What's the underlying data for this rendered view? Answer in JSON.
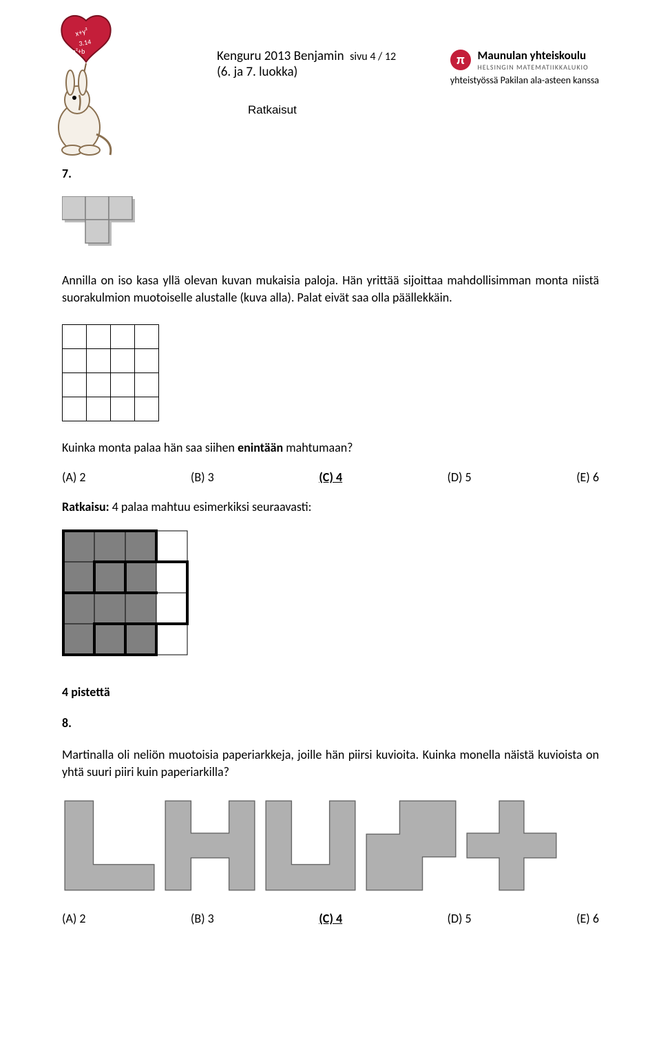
{
  "header": {
    "title_main": "Kenguru 2013 Benjamin",
    "title_page": "sivu 4 / 12",
    "title_sub": "(6. ja 7. luokka)",
    "subtitle": "Ratkaisut",
    "school_name": "Maunulan yhteiskoulu",
    "school_sub": "HELSINGIN MATEMATIIKKALUKIO",
    "cooperation": "yhteistyössä Pakilan ala-asteen kanssa",
    "pi_symbol": "π"
  },
  "q7": {
    "number": "7.",
    "text1": "Annilla on iso kasa yllä olevan kuvan mukaisia paloja. Hän yrittää sijoittaa mahdollisimman monta niistä suorakulmion muotoiselle alustalle (kuva alla). Palat eivät saa olla päällekkäin.",
    "text2_pre": "Kuinka monta palaa hän saa siihen ",
    "text2_bold": "enintään",
    "text2_post": " mahtumaan?",
    "options": {
      "a": "(A) 2",
      "b": "(B) 3",
      "c": "(C) 4",
      "d": "(D) 5",
      "e": "(E) 6"
    },
    "solution_label": "Ratkaisu:",
    "solution_text": " 4 palaa mahtuu esimerkiksi seuraavasti:",
    "tetromino": {
      "cell_size": 34,
      "fill": "#cccccc",
      "stroke": "#808080",
      "shadow": "#bbbbbb"
    },
    "grid": {
      "cols": 4,
      "rows": 4,
      "cell_size": 35,
      "stroke": "#000000",
      "fill": "#ffffff"
    },
    "solved": {
      "cols": 4,
      "rows": 4,
      "cell_size": 45,
      "fill_piece": "#808080",
      "fill_empty": "#ffffff",
      "thin_stroke": "#000000",
      "thick_stroke": "#000000",
      "filled_cells": [
        [
          0,
          0
        ],
        [
          0,
          1
        ],
        [
          0,
          2
        ],
        [
          1,
          0
        ],
        [
          1,
          1
        ],
        [
          1,
          2
        ],
        [
          2,
          0
        ],
        [
          2,
          1
        ],
        [
          2,
          2
        ],
        [
          3,
          0
        ],
        [
          3,
          1
        ],
        [
          3,
          2
        ]
      ],
      "thick_segments": [
        [
          0,
          0,
          3,
          0
        ],
        [
          0,
          0,
          0,
          2
        ],
        [
          3,
          0,
          3,
          1
        ],
        [
          0,
          2,
          3,
          2
        ],
        [
          3,
          1,
          4,
          1
        ],
        [
          4,
          1,
          4,
          3
        ],
        [
          0,
          2,
          0,
          4
        ],
        [
          0,
          4,
          3,
          4
        ],
        [
          3,
          3,
          4,
          3
        ],
        [
          3,
          3,
          3,
          4
        ],
        [
          1,
          1,
          1,
          2
        ],
        [
          2,
          1,
          2,
          2
        ],
        [
          1,
          3,
          1,
          4
        ],
        [
          2,
          3,
          2,
          4
        ],
        [
          1,
          1,
          3,
          1
        ],
        [
          1,
          3,
          3,
          3
        ]
      ]
    }
  },
  "section_title": "4 pistettä",
  "q8": {
    "number": "8.",
    "text": "Martinalla oli neliön muotoisia paperiarkkeja, joille hän piirsi kuvioita. Kuinka monella näistä kuvioista on yhtä suuri piiri kuin paperiarkilla?",
    "options": {
      "a": "(A) 2",
      "b": "(B) 3",
      "c": "(C) 4",
      "d": "(D) 5",
      "e": "(E) 6"
    },
    "shapes": {
      "size": 138,
      "fill": "#b0b0b0",
      "bg": "#ffffff",
      "stroke": "#666666"
    }
  }
}
